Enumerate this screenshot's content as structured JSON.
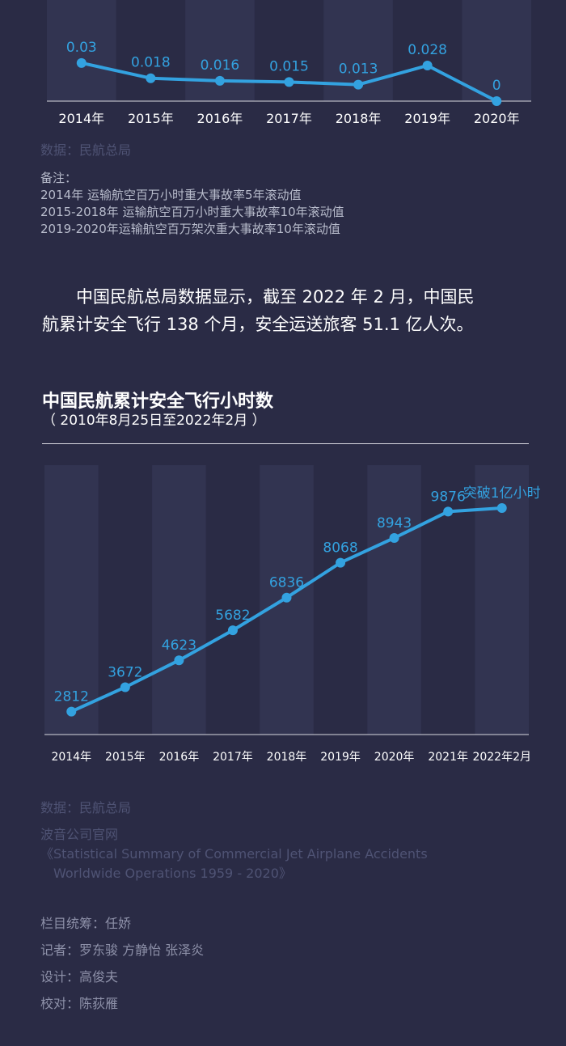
{
  "chart_data": [
    {
      "type": "line",
      "categories": [
        "2014年",
        "2015年",
        "2016年",
        "2017年",
        "2018年",
        "2019年",
        "2020年"
      ],
      "values": [
        0.03,
        0.018,
        0.016,
        0.015,
        0.013,
        0.028,
        0
      ],
      "labels": [
        "0.03",
        "0.018",
        "0.016",
        "0.015",
        "0.013",
        "0.028",
        "0"
      ],
      "ylim": [
        0,
        0.035
      ],
      "color": "#33a2e0",
      "grid": false
    },
    {
      "type": "line",
      "title": "中国民航累计安全飞行小时数",
      "subtitle": "（ 2010年8月25日至2022年2月 ）",
      "categories": [
        "2014年",
        "2015年",
        "2016年",
        "2017年",
        "2018年",
        "2019年",
        "2020年",
        "2021年",
        "2022年2月"
      ],
      "values": [
        2812,
        3672,
        4623,
        5682,
        6836,
        8068,
        8943,
        9876,
        10000
      ],
      "labels": [
        "2812",
        "3672",
        "4623",
        "5682",
        "6836",
        "8068",
        "8943",
        "9876",
        "突破1亿小时"
      ],
      "ylim": [
        2000,
        10800
      ],
      "color": "#33a2e0",
      "grid": false
    }
  ],
  "chart1_source": "数据：民航总局",
  "notes": {
    "heading": "备注：",
    "lines": [
      "2014年 运输航空百万小时重大事故率5年滚动值",
      "2015-2018年 运输航空百万小时重大事故率10年滚动值",
      "2019-2020年运输航空百万架次重大事故率10年滚动值"
    ]
  },
  "paragraph": {
    "line1": "　　中国民航总局数据显示，截至 2022 年 2 月，中国民",
    "line2": "航累计安全飞行 138 个月，安全运送旅客 51.1 亿人次。"
  },
  "footer": {
    "source1": "数据：民航总局",
    "source2": "波音公司官网",
    "source3": "《Statistical Summary of Commercial Jet Airplane Accidents",
    "source4": "　Worldwide Operations 1959 - 2020》",
    "credits": [
      "栏目统筹：任娇",
      "记者：罗东骏 方静怡 张泽炎",
      "设计：高俊夫",
      "校对：陈荻雁"
    ]
  }
}
